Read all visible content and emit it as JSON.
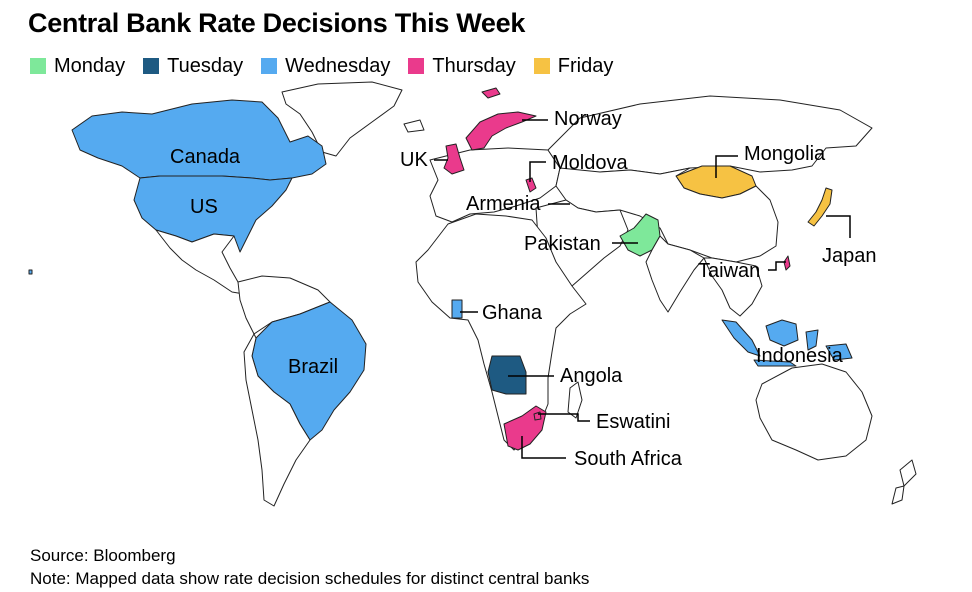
{
  "title": "Central Bank Rate Decisions This Week",
  "legend": [
    {
      "label": "Monday",
      "color": "#7ee89a"
    },
    {
      "label": "Tuesday",
      "color": "#1e5a82"
    },
    {
      "label": "Wednesday",
      "color": "#55aaf0"
    },
    {
      "label": "Thursday",
      "color": "#ea3a8c"
    },
    {
      "label": "Friday",
      "color": "#f6c243"
    }
  ],
  "labels": {
    "canada": "Canada",
    "us": "US",
    "brazil": "Brazil",
    "uk": "UK",
    "norway": "Norway",
    "moldova": "Moldova",
    "armenia": "Armenia",
    "pakistan": "Pakistan",
    "ghana": "Ghana",
    "angola": "Angola",
    "eswatini": "Eswatini",
    "south_africa": "South Africa",
    "mongolia": "Mongolia",
    "japan": "Japan",
    "taiwan": "Taiwan",
    "indonesia": "Indonesia"
  },
  "source": "Source: Bloomberg",
  "note": "Note: Mapped data show rate decision schedules for distinct central banks"
}
